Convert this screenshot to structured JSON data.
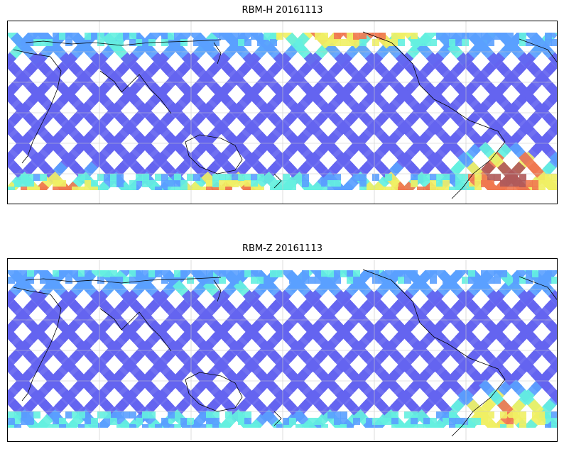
{
  "panels": [
    {
      "title": "RBM-H 20161113",
      "colormap": "jet",
      "hot_regions": [
        {
          "region": "south-atlantic",
          "level": 1.0
        },
        {
          "region": "southern-ocean-band",
          "level": 0.8
        },
        {
          "region": "north-pacific-band",
          "level": 0.75
        }
      ]
    },
    {
      "title": "RBM-Z 20161113",
      "colormap": "jet",
      "hot_regions": [
        {
          "region": "south-atlantic",
          "level": 0.7
        },
        {
          "region": "southern-ocean-band",
          "level": 0.4
        },
        {
          "region": "north-pacific-band",
          "level": 0.3
        }
      ]
    }
  ],
  "colors": {
    "low": "#6464f0",
    "mid_low": "#5aa0ff",
    "mid": "#64f0e0",
    "mid_high": "#f0f064",
    "high": "#f07850",
    "max": "#b05a5a",
    "coastline": "#000000",
    "gridline": "#c8c8c8"
  }
}
